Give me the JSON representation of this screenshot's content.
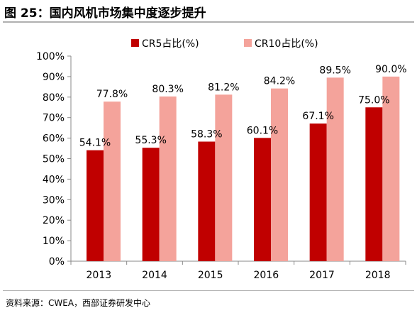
{
  "title": "图 25：国内风机市场集中度逐步提升",
  "source": "资料来源：CWEA，西部证券研发中心",
  "colors": {
    "cr5": "#c00000",
    "cr10": "#f4a39b",
    "axis": "#888888"
  },
  "chart_data": {
    "type": "bar",
    "categories": [
      "2013",
      "2014",
      "2015",
      "2016",
      "2017",
      "2018"
    ],
    "series": [
      {
        "name": "CR5占比(%)",
        "values": [
          54.1,
          55.3,
          58.3,
          60.1,
          67.1,
          75.0
        ],
        "labels": [
          "54.1%",
          "55.3%",
          "58.3%",
          "60.1%",
          "67.1%",
          "75.0%"
        ]
      },
      {
        "name": "CR10占比(%)",
        "values": [
          77.8,
          80.3,
          81.2,
          84.2,
          89.5,
          90.0
        ],
        "labels": [
          "77.8%",
          "80.3%",
          "81.2%",
          "84.2%",
          "89.5%",
          "90.0%"
        ]
      }
    ],
    "ylim": [
      0,
      100
    ],
    "yticks": [
      "0%",
      "10%",
      "20%",
      "30%",
      "40%",
      "50%",
      "60%",
      "70%",
      "80%",
      "90%",
      "100%"
    ],
    "grid": false,
    "legend": "top-center"
  }
}
